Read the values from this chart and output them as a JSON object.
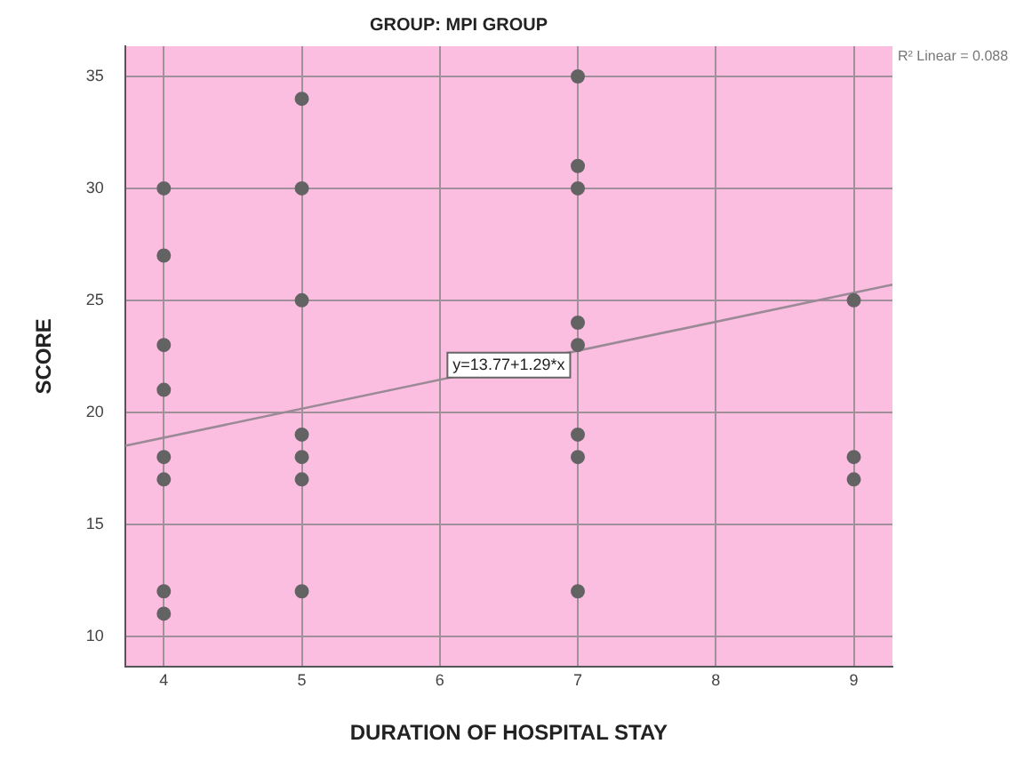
{
  "chart_data": {
    "type": "scatter",
    "title": "GROUP: MPI GROUP",
    "xlabel": "DURATION OF HOSPITAL STAY",
    "ylabel": "SCORE",
    "xlim": [
      3.72,
      9.28
    ],
    "xticks": [
      4,
      5,
      6,
      7,
      8,
      9
    ],
    "ylim": [
      8.65,
      36.35
    ],
    "yticks": [
      10,
      15,
      20,
      25,
      30,
      35
    ],
    "grid": true,
    "series": [
      {
        "color": "#636363",
        "marker": "circle",
        "x": [
          4,
          4,
          4,
          4,
          4,
          4,
          4,
          4,
          5,
          5,
          5,
          5,
          5,
          5,
          5,
          7,
          7,
          7,
          7,
          7,
          7,
          7,
          7,
          9,
          9,
          9
        ],
        "values": [
          30,
          27,
          23,
          21,
          18,
          17,
          12,
          11,
          34,
          30,
          25,
          19,
          18,
          17,
          12,
          35,
          31,
          30,
          24,
          23,
          19,
          18,
          12,
          25,
          18,
          17
        ]
      },
      {
        "type": "line",
        "name": "y=13.77+1.29*x",
        "marker": "none",
        "color": "#9a8a95",
        "x": [
          3.72,
          9.28
        ],
        "values": [
          18.5,
          25.7
        ]
      }
    ],
    "annotations": [
      "R² Linear = 0.088"
    ]
  }
}
